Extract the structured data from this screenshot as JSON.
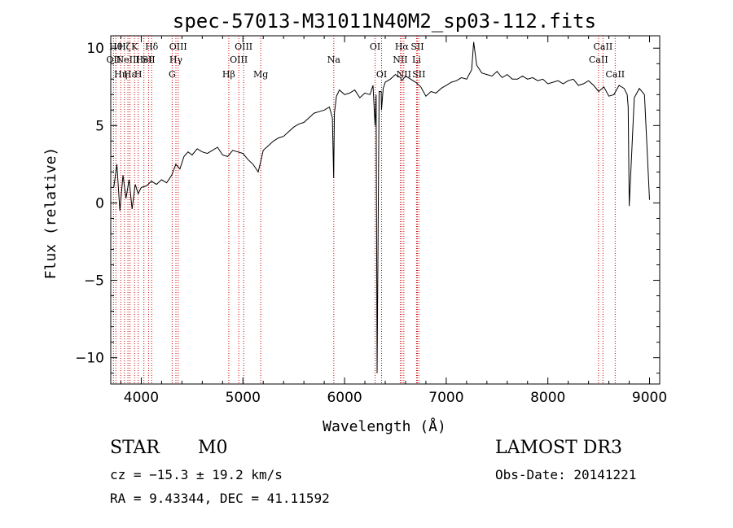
{
  "chart_data": {
    "type": "line",
    "title": "spec-57013-M31011N40M2_sp03-112.fits",
    "xlabel": "Wavelength (Å)",
    "ylabel": "Flux (relative)",
    "xlim": [
      3700,
      9100
    ],
    "ylim": [
      -11.7,
      10.8
    ],
    "x_ticks": [
      4000,
      5000,
      6000,
      7000,
      8000,
      9000
    ],
    "x_tick_labels": [
      "4000",
      "5000",
      "6000",
      "7000",
      "8000",
      "9000"
    ],
    "y_ticks": [
      10,
      5,
      0,
      -5,
      -10
    ],
    "y_tick_labels": [
      "10",
      "5",
      "0",
      "−5",
      "−10"
    ],
    "series": [
      {
        "name": "spectrum",
        "x": [
          3730,
          3760,
          3790,
          3820,
          3850,
          3880,
          3910,
          3940,
          3970,
          4000,
          4050,
          4100,
          4150,
          4200,
          4250,
          4300,
          4340,
          4380,
          4420,
          4460,
          4500,
          4550,
          4600,
          4650,
          4700,
          4750,
          4800,
          4850,
          4900,
          4950,
          5000,
          5050,
          5100,
          5150,
          5180,
          5200,
          5250,
          5300,
          5350,
          5400,
          5450,
          5500,
          5550,
          5600,
          5650,
          5700,
          5750,
          5800,
          5850,
          5880,
          5893,
          5900,
          5920,
          5950,
          6000,
          6050,
          6100,
          6150,
          6200,
          6250,
          6280,
          6300,
          6310,
          6320,
          6340,
          6360,
          6363,
          6380,
          6400,
          6450,
          6500,
          6550,
          6563,
          6600,
          6650,
          6700,
          6750,
          6800,
          6850,
          6900,
          6950,
          7000,
          7050,
          7100,
          7150,
          7200,
          7250,
          7270,
          7300,
          7350,
          7400,
          7450,
          7500,
          7550,
          7600,
          7650,
          7700,
          7750,
          7800,
          7850,
          7900,
          7950,
          8000,
          8050,
          8100,
          8150,
          8200,
          8250,
          8300,
          8350,
          8400,
          8450,
          8500,
          8550,
          8600,
          8650,
          8700,
          8750,
          8780,
          8790,
          8800,
          8850,
          8900,
          8950,
          9000
        ],
        "y": [
          1.0,
          2.5,
          -0.5,
          1.8,
          0.3,
          1.5,
          -0.4,
          1.2,
          0.6,
          1.0,
          1.1,
          1.4,
          1.2,
          1.5,
          1.3,
          1.8,
          2.5,
          2.2,
          3.0,
          3.3,
          3.1,
          3.5,
          3.3,
          3.2,
          3.4,
          3.6,
          3.1,
          3.0,
          3.4,
          3.3,
          3.2,
          2.8,
          2.5,
          2.0,
          2.8,
          3.4,
          3.7,
          4.0,
          4.2,
          4.3,
          4.6,
          4.9,
          5.1,
          5.2,
          5.5,
          5.8,
          5.9,
          6.0,
          6.2,
          5.5,
          1.6,
          5.8,
          6.9,
          7.3,
          7.0,
          7.1,
          7.3,
          6.8,
          7.1,
          7.0,
          7.6,
          5.0,
          7.0,
          -11.0,
          7.2,
          7.2,
          6.0,
          7.4,
          7.8,
          8.0,
          8.3,
          8.1,
          7.9,
          8.2,
          8.0,
          7.8,
          7.5,
          6.9,
          7.2,
          7.1,
          7.4,
          7.6,
          7.8,
          7.9,
          8.1,
          8.0,
          8.6,
          10.4,
          8.9,
          8.4,
          8.3,
          8.2,
          8.5,
          8.1,
          8.3,
          8.0,
          8.0,
          8.2,
          8.0,
          8.1,
          7.9,
          8.0,
          7.7,
          7.8,
          7.9,
          7.7,
          7.9,
          8.0,
          7.6,
          7.7,
          7.9,
          7.6,
          7.2,
          7.5,
          6.9,
          7.0,
          7.6,
          7.4,
          7.0,
          6.2,
          -0.2,
          6.8,
          7.4,
          7.0,
          0.2
        ]
      }
    ],
    "line_markers": [
      {
        "x": 3727,
        "label": "OII",
        "row": 2
      },
      {
        "x": 3750,
        "label": "Hθ",
        "row": 1
      },
      {
        "x": 3798,
        "label": "Hη",
        "row": 3
      },
      {
        "x": 3835,
        "label": "Hζ",
        "row": 1
      },
      {
        "x": 3869,
        "label": "NeIII",
        "row": 2
      },
      {
        "x": 3889,
        "label": "Hε",
        "row": 3
      },
      {
        "x": 3934,
        "label": "K",
        "row": 1
      },
      {
        "x": 3970,
        "label": "H",
        "row": 3
      },
      {
        "x": 4026,
        "label": "HeI",
        "row": 2
      },
      {
        "x": 4072,
        "label": "SII",
        "row": 2
      },
      {
        "x": 4102,
        "label": "Hδ",
        "row": 1
      },
      {
        "x": 4304,
        "label": "G",
        "row": 3
      },
      {
        "x": 4341,
        "label": "Hγ",
        "row": 2
      },
      {
        "x": 4363,
        "label": "OIII",
        "row": 1
      },
      {
        "x": 4861,
        "label": "Hβ",
        "row": 3
      },
      {
        "x": 4959,
        "label": "OIII",
        "row": 2
      },
      {
        "x": 5007,
        "label": "OIII",
        "row": 1
      },
      {
        "x": 5175,
        "label": "Mg",
        "row": 3
      },
      {
        "x": 5894,
        "label": "Na",
        "row": 2
      },
      {
        "x": 6300,
        "label": "OI",
        "row": 1
      },
      {
        "x": 6364,
        "label": "OI",
        "row": 3
      },
      {
        "x": 6548,
        "label": "NII",
        "row": 2
      },
      {
        "x": 6563,
        "label": "Hα",
        "row": 1
      },
      {
        "x": 6583,
        "label": "NII",
        "row": 3
      },
      {
        "x": 6708,
        "label": "Li",
        "row": 2
      },
      {
        "x": 6716,
        "label": "SII",
        "row": 1
      },
      {
        "x": 6731,
        "label": "SII",
        "row": 3
      },
      {
        "x": 8498,
        "label": "CaII",
        "row": 2
      },
      {
        "x": 8542,
        "label": "CaII",
        "row": 1
      },
      {
        "x": 8662,
        "label": "CaII",
        "row": 3
      }
    ]
  },
  "info": {
    "object_class": "STAR",
    "subclass": "M0",
    "survey": "LAMOST DR3",
    "redshift": "cz = −15.3 ± 19.2 km/s",
    "obs_date": "Obs-Date: 20141221",
    "coords": "RA =   9.43344, DEC =  41.11592"
  },
  "colors": {
    "spectrum": "#000000",
    "marker": "#cc0000",
    "axis": "#000000"
  }
}
